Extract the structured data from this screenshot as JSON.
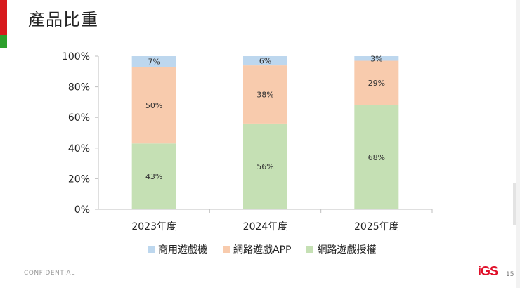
{
  "slide": {
    "title": "產品比重",
    "footer": "CONFIDENTIAL",
    "logo_text": "iGS",
    "page_number": "15"
  },
  "colors": {
    "accent_red": "#d7191c",
    "accent_green": "#2ca02c",
    "series_commercial": "#bdd7ee",
    "series_app": "#f8cbad",
    "series_licensing": "#c5e0b4",
    "axis": "#bfbfbf"
  },
  "chart_data": {
    "type": "bar",
    "stacked": true,
    "title": "",
    "categories": [
      "2023年度",
      "2024年度",
      "2025年度"
    ],
    "series": [
      {
        "name": "網路遊戲授權",
        "values": [
          43,
          56,
          68
        ],
        "labels": [
          "43%",
          "56%",
          "68%"
        ]
      },
      {
        "name": "網路遊戲APP",
        "values": [
          50,
          38,
          29
        ],
        "labels": [
          "50%",
          "38%",
          "29%"
        ]
      },
      {
        "name": "商用遊戲機",
        "values": [
          7,
          6,
          3
        ],
        "labels": [
          "7%",
          "6%",
          "3%"
        ]
      }
    ],
    "ylim": [
      0,
      100
    ],
    "yticks": [
      "0%",
      "20%",
      "40%",
      "60%",
      "80%",
      "100%"
    ],
    "legend_order": [
      "商用遊戲機",
      "網路遊戲APP",
      "網路遊戲授權"
    ],
    "legend_position": "bottom"
  }
}
